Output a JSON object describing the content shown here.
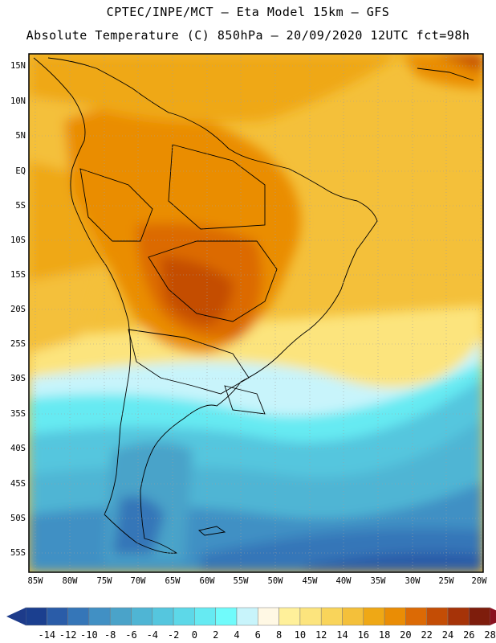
{
  "header": {
    "line1": "CPTEC/INPE/MCT –  Eta Model 15km – GFS",
    "line2": "Absolute Temperature (C) 850hPa – 20/09/2020 12UTC fct=98h"
  },
  "axes": {
    "lat_labels": [
      "15N",
      "10N",
      "5N",
      "EQ",
      "5S",
      "10S",
      "15S",
      "20S",
      "25S",
      "30S",
      "35S",
      "40S",
      "45S",
      "50S",
      "55S"
    ],
    "lon_labels": [
      "85W",
      "80W",
      "75W",
      "70W",
      "65W",
      "60W",
      "55W",
      "50W",
      "45W",
      "40W",
      "35W",
      "30W",
      "25W",
      "20W"
    ]
  },
  "colorbar": {
    "labels": [
      "-14",
      "-12",
      "-10",
      "-8",
      "-6",
      "-4",
      "-2",
      "0",
      "2",
      "4",
      "6",
      "8",
      "10",
      "12",
      "14",
      "16",
      "18",
      "20",
      "22",
      "24",
      "26",
      "28"
    ],
    "colors": [
      "#1b3f8f",
      "#2a5ca8",
      "#3576b8",
      "#4190c4",
      "#4aa3c9",
      "#4fb5d4",
      "#55c6de",
      "#5dd8e8",
      "#66eaf2",
      "#70fbfb",
      "#c8f4fb",
      "#fff8e4",
      "#fff09a",
      "#fce47d",
      "#f9d45a",
      "#f4c03a",
      "#efa815",
      "#ea8d05",
      "#dc6a05",
      "#c44d05",
      "#a63308",
      "#7e1d0c"
    ],
    "under_color": "#1d3b8a",
    "over_color": "#8a1020"
  }
}
